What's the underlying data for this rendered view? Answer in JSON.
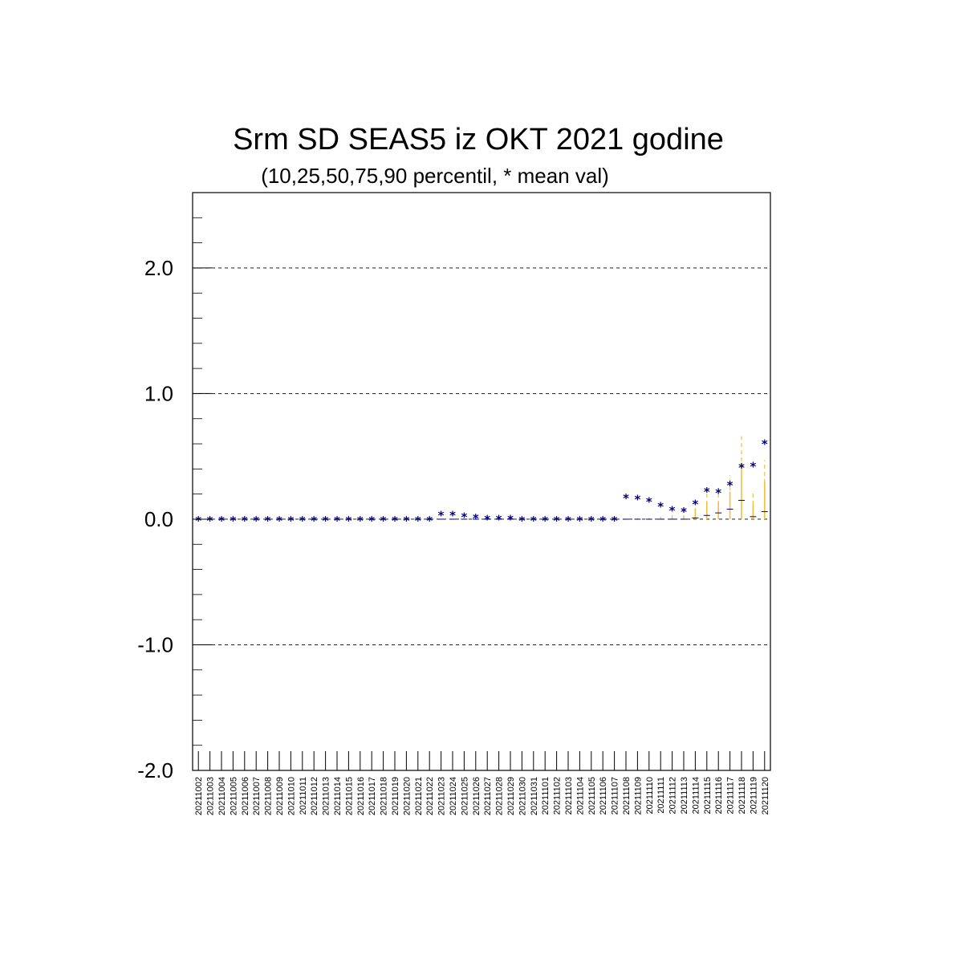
{
  "chart_data": {
    "type": "scatter",
    "title": "Srm SD SEAS5 iz OKT 2021 godine",
    "subtitle": "(10,25,50,75,90 percentil, * mean val)",
    "ylim": [
      -2.0,
      2.6
    ],
    "yticks": [
      -2.0,
      -1.0,
      0.0,
      1.0,
      2.0
    ],
    "ytick_labels": [
      "-2.0",
      "-1.0",
      "0.0",
      "1.0",
      "2.0"
    ],
    "grid": "horizontal-dashed-at-major-ticks",
    "colors": {
      "mean": "#000080",
      "percentile": "#f0c040",
      "grid": "#000000"
    },
    "categories": [
      "20211002",
      "20211003",
      "20211004",
      "20211005",
      "20211006",
      "20211007",
      "20211008",
      "20211009",
      "20211010",
      "20211011",
      "20211012",
      "20211013",
      "20211014",
      "20211015",
      "20211016",
      "20211017",
      "20211018",
      "20211019",
      "20211020",
      "20211021",
      "20211022",
      "20211023",
      "20211024",
      "20211025",
      "20211026",
      "20211027",
      "20211028",
      "20211029",
      "20211030",
      "20211031",
      "20211101",
      "20211102",
      "20211103",
      "20211104",
      "20211105",
      "20211106",
      "20211107",
      "20211108",
      "20211109",
      "20211110",
      "20211111",
      "20211112",
      "20211113",
      "20211114",
      "20211115",
      "20211116",
      "20211117",
      "20211118",
      "20211119",
      "20211120"
    ],
    "mean": [
      0,
      0,
      0,
      0,
      0,
      0,
      0,
      0,
      0,
      0,
      0,
      0,
      0,
      0,
      0,
      0,
      0,
      0,
      0,
      0,
      0,
      0.04,
      0.04,
      0.03,
      0.02,
      0.01,
      0.01,
      0.01,
      0,
      0,
      0,
      0,
      0,
      0,
      0,
      0,
      0,
      0.18,
      0.17,
      0.15,
      0.11,
      0.08,
      0.07,
      0.13,
      0.23,
      0.22,
      0.28,
      0.42,
      0.43,
      0.61
    ],
    "p90": [
      0,
      0,
      0,
      0,
      0,
      0,
      0,
      0,
      0,
      0,
      0,
      0,
      0,
      0,
      0,
      0,
      0,
      0,
      0,
      0,
      0,
      0,
      0,
      0,
      0,
      0,
      0,
      0,
      0,
      0,
      0,
      0,
      0,
      0,
      0,
      0,
      0,
      0,
      0.01,
      0.01,
      0.02,
      0.04,
      0.06,
      0.17,
      0.25,
      0.25,
      0.35,
      0.66,
      0.22,
      0.47
    ],
    "p75": [
      0,
      0,
      0,
      0,
      0,
      0,
      0,
      0,
      0,
      0,
      0,
      0,
      0,
      0,
      0,
      0,
      0,
      0,
      0,
      0,
      0,
      0,
      0,
      0,
      0,
      0,
      0,
      0,
      0,
      0,
      0,
      0,
      0,
      0,
      0,
      0,
      0,
      0,
      0,
      0,
      0,
      0.01,
      0.02,
      0.08,
      0.14,
      0.14,
      0.22,
      0.45,
      0.12,
      0.3
    ],
    "p50": [
      0,
      0,
      0,
      0,
      0,
      0,
      0,
      0,
      0,
      0,
      0,
      0,
      0,
      0,
      0,
      0,
      0,
      0,
      0,
      0,
      0,
      0,
      0,
      0,
      0,
      0,
      0,
      0,
      0,
      0,
      0,
      0,
      0,
      0,
      0,
      0,
      0,
      0,
      0,
      0,
      0,
      0,
      0,
      0.01,
      0.03,
      0.05,
      0.08,
      0.15,
      0.02,
      0.06
    ]
  }
}
